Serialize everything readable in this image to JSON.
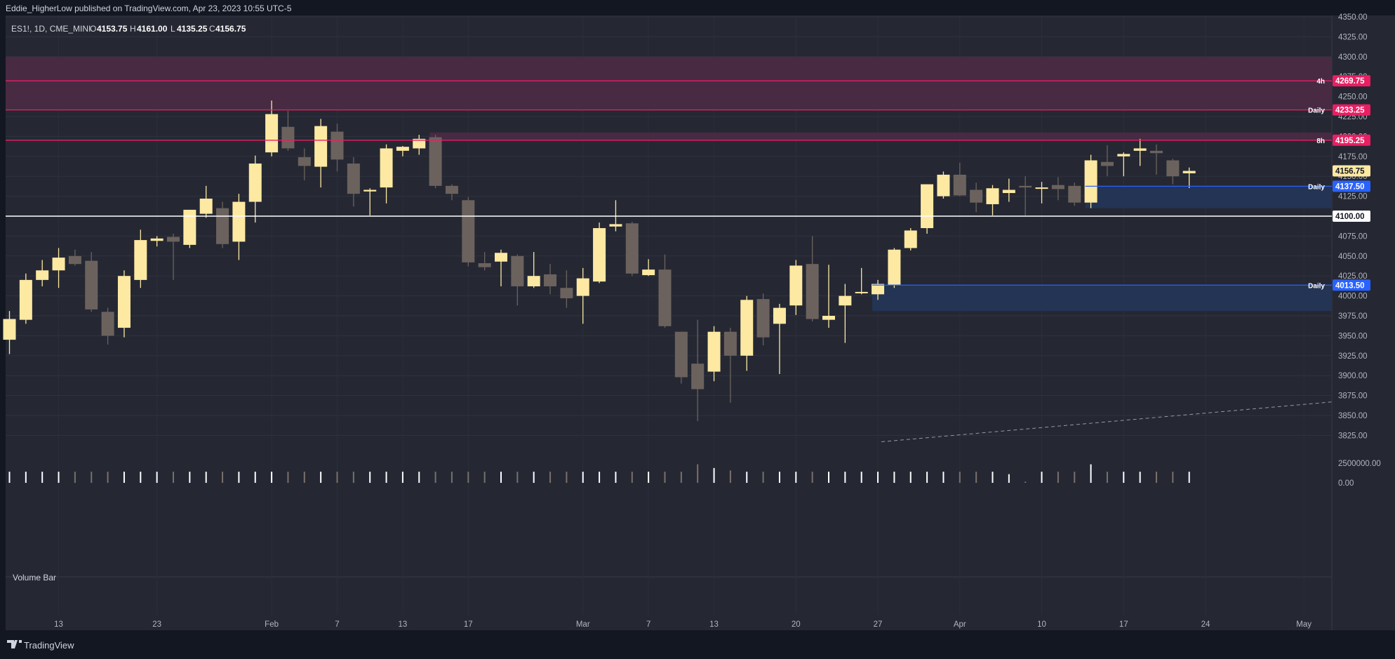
{
  "header": {
    "published_by": "Eddie_HigherLow published on TradingView.com, Apr 23, 2023 10:55 UTC-5",
    "symbol": "ES1!, 1D, CME_MINI",
    "ohlc": [
      {
        "label": "O",
        "value": "4153.75"
      },
      {
        "label": "H",
        "value": "4161.00"
      },
      {
        "label": "L",
        "value": "4135.25"
      },
      {
        "label": "C",
        "value": "4156.75"
      }
    ]
  },
  "volume_label": "Volume Bar",
  "footer_brand": "TradingView",
  "colors": {
    "background": "#131722",
    "pane": "#252833",
    "up_candle": "#fde9a2",
    "down_candle": "#6b625e",
    "resistance_zone": "#4a2a45",
    "resistance_line": "#e91e63",
    "support_zone": "#233556",
    "support_line": "#2962ff",
    "level_line": "#ffffff"
  },
  "chart_data": {
    "type": "candlestick",
    "symbol": "ES1!",
    "interval": "1D",
    "y_axis": {
      "min": 3812.5,
      "max": 4350,
      "step": 25,
      "ticks": [
        "4350.00",
        "4325.00",
        "4300.00",
        "4275.00",
        "4250.00",
        "4225.00",
        "4200.00",
        "4175.00",
        "4150.00",
        "4125.00",
        "4100.00",
        "4075.00",
        "4050.00",
        "4025.00",
        "4000.00",
        "3975.00",
        "3950.00",
        "3925.00",
        "3900.00",
        "3875.00",
        "3850.00",
        "3825.00"
      ]
    },
    "volume_axis": {
      "ticks": [
        "2500000.00",
        "0.00"
      ]
    },
    "x_axis": {
      "ticks": [
        {
          "label": "13",
          "bar": 3
        },
        {
          "label": "23",
          "bar": 9
        },
        {
          "label": "Feb",
          "bar": 16
        },
        {
          "label": "7",
          "bar": 20
        },
        {
          "label": "13",
          "bar": 24
        },
        {
          "label": "17",
          "bar": 28
        },
        {
          "label": "Mar",
          "bar": 35
        },
        {
          "label": "7",
          "bar": 39
        },
        {
          "label": "13",
          "bar": 43
        },
        {
          "label": "20",
          "bar": 48
        },
        {
          "label": "27",
          "bar": 53
        },
        {
          "label": "Apr",
          "bar": 58
        },
        {
          "label": "10",
          "bar": 63
        },
        {
          "label": "17",
          "bar": 68
        },
        {
          "label": "24",
          "bar": 73
        },
        {
          "label": "May",
          "bar": 79
        }
      ]
    },
    "candles": [
      {
        "o": 3945,
        "h": 3981,
        "l": 3927,
        "c": 3971,
        "v": 0.36
      },
      {
        "o": 3970,
        "h": 4028,
        "l": 3965,
        "c": 4020,
        "v": 0.36
      },
      {
        "o": 4020,
        "h": 4045,
        "l": 4012,
        "c": 4032,
        "v": 0.36
      },
      {
        "o": 4032,
        "h": 4060,
        "l": 4010,
        "c": 4048,
        "v": 0.36
      },
      {
        "o": 4050,
        "h": 4058,
        "l": 4038,
        "c": 4040,
        "v": 0.36
      },
      {
        "o": 4044,
        "h": 4055,
        "l": 3980,
        "c": 3983,
        "v": 0.36
      },
      {
        "o": 3980,
        "h": 3985,
        "l": 3939,
        "c": 3950,
        "v": 0.36
      },
      {
        "o": 3960,
        "h": 4032,
        "l": 3948,
        "c": 4025,
        "v": 0.36
      },
      {
        "o": 4020,
        "h": 4083,
        "l": 4010,
        "c": 4070,
        "v": 0.36
      },
      {
        "o": 4069,
        "h": 4075,
        "l": 4062,
        "c": 4072,
        "v": 0.36
      },
      {
        "o": 4074,
        "h": 4078,
        "l": 4020,
        "c": 4068,
        "v": 0.36
      },
      {
        "o": 4064,
        "h": 4108,
        "l": 4060,
        "c": 4108,
        "v": 0.36
      },
      {
        "o": 4103,
        "h": 4138,
        "l": 4098,
        "c": 4122,
        "v": 0.36
      },
      {
        "o": 4110,
        "h": 4118,
        "l": 4060,
        "c": 4065,
        "v": 0.36
      },
      {
        "o": 4068,
        "h": 4128,
        "l": 4045,
        "c": 4118,
        "v": 0.36
      },
      {
        "o": 4118,
        "h": 4176,
        "l": 4092,
        "c": 4166,
        "v": 0.36
      },
      {
        "o": 4180,
        "h": 4245,
        "l": 4175,
        "c": 4228,
        "v": 0.36
      },
      {
        "o": 4212,
        "h": 4232,
        "l": 4182,
        "c": 4185,
        "v": 0.36
      },
      {
        "o": 4174,
        "h": 4185,
        "l": 4145,
        "c": 4163,
        "v": 0.36
      },
      {
        "o": 4162,
        "h": 4222,
        "l": 4136,
        "c": 4213,
        "v": 0.36
      },
      {
        "o": 4206,
        "h": 4216,
        "l": 4156,
        "c": 4171,
        "v": 0.36
      },
      {
        "o": 4166,
        "h": 4174,
        "l": 4112,
        "c": 4128,
        "v": 0.36
      },
      {
        "o": 4131,
        "h": 4135,
        "l": 4101,
        "c": 4133,
        "v": 0.36
      },
      {
        "o": 4136,
        "h": 4190,
        "l": 4116,
        "c": 4185,
        "v": 0.36
      },
      {
        "o": 4182,
        "h": 4188,
        "l": 4175,
        "c": 4187,
        "v": 0.36
      },
      {
        "o": 4185,
        "h": 4202,
        "l": 4177,
        "c": 4197,
        "v": 0.36
      },
      {
        "o": 4199,
        "h": 4202,
        "l": 4135,
        "c": 4138,
        "v": 0.36
      },
      {
        "o": 4138,
        "h": 4140,
        "l": 4120,
        "c": 4128,
        "v": 0.36
      },
      {
        "o": 4120,
        "h": 4124,
        "l": 4037,
        "c": 4042,
        "v": 0.36
      },
      {
        "o": 4041,
        "h": 4055,
        "l": 4032,
        "c": 4036,
        "v": 0.36
      },
      {
        "o": 4043,
        "h": 4058,
        "l": 4012,
        "c": 4054,
        "v": 0.36
      },
      {
        "o": 4050,
        "h": 4052,
        "l": 3988,
        "c": 4012,
        "v": 0.36
      },
      {
        "o": 4012,
        "h": 4055,
        "l": 4010,
        "c": 4025,
        "v": 0.36
      },
      {
        "o": 4027,
        "h": 4040,
        "l": 4002,
        "c": 4012,
        "v": 0.36
      },
      {
        "o": 4010,
        "h": 4032,
        "l": 3985,
        "c": 3997,
        "v": 0.36
      },
      {
        "o": 4000,
        "h": 4035,
        "l": 3965,
        "c": 4022,
        "v": 0.36
      },
      {
        "o": 4018,
        "h": 4092,
        "l": 4016,
        "c": 4085,
        "v": 0.36
      },
      {
        "o": 4087,
        "h": 4120,
        "l": 4081,
        "c": 4090,
        "v": 0.36
      },
      {
        "o": 4091,
        "h": 4093,
        "l": 4025,
        "c": 4028,
        "v": 0.36
      },
      {
        "o": 4026,
        "h": 4046,
        "l": 4025,
        "c": 4033,
        "v": 0.36
      },
      {
        "o": 4033,
        "h": 4052,
        "l": 3960,
        "c": 3962,
        "v": 0.36
      },
      {
        "o": 3955,
        "h": 3955,
        "l": 3890,
        "c": 3898,
        "v": 0.36
      },
      {
        "o": 3915,
        "h": 3970,
        "l": 3843,
        "c": 3883,
        "v": 0.6
      },
      {
        "o": 3905,
        "h": 3962,
        "l": 3893,
        "c": 3955,
        "v": 0.48
      },
      {
        "o": 3955,
        "h": 3960,
        "l": 3866,
        "c": 3925,
        "v": 0.4
      },
      {
        "o": 3925,
        "h": 4000,
        "l": 3906,
        "c": 3995,
        "v": 0.36
      },
      {
        "o": 3996,
        "h": 4003,
        "l": 3938,
        "c": 3948,
        "v": 0.36
      },
      {
        "o": 3965,
        "h": 3990,
        "l": 3902,
        "c": 3985,
        "v": 0.36
      },
      {
        "o": 3988,
        "h": 4045,
        "l": 3976,
        "c": 4038,
        "v": 0.36
      },
      {
        "o": 4040,
        "h": 4075,
        "l": 3968,
        "c": 3971,
        "v": 0.36
      },
      {
        "o": 3970,
        "h": 4039,
        "l": 3960,
        "c": 3975,
        "v": 0.36
      },
      {
        "o": 3988,
        "h": 4015,
        "l": 3941,
        "c": 4000,
        "v": 0.36
      },
      {
        "o": 4004,
        "h": 4035,
        "l": 4002,
        "c": 4005,
        "v": 0.36
      },
      {
        "o": 4002,
        "h": 4020,
        "l": 3995,
        "c": 4015,
        "v": 0.36
      },
      {
        "o": 4014,
        "h": 4060,
        "l": 4010,
        "c": 4058,
        "v": 0.36
      },
      {
        "o": 4060,
        "h": 4085,
        "l": 4057,
        "c": 4082,
        "v": 0.36
      },
      {
        "o": 4085,
        "h": 4140,
        "l": 4078,
        "c": 4140,
        "v": 0.36
      },
      {
        "o": 4125,
        "h": 4156,
        "l": 4122,
        "c": 4152,
        "v": 0.36
      },
      {
        "o": 4152,
        "h": 4167,
        "l": 4125,
        "c": 4126,
        "v": 0.36
      },
      {
        "o": 4133,
        "h": 4142,
        "l": 4105,
        "c": 4117,
        "v": 0.36
      },
      {
        "o": 4115,
        "h": 4139,
        "l": 4101,
        "c": 4135,
        "v": 0.36
      },
      {
        "o": 4129,
        "h": 4147,
        "l": 4118,
        "c": 4133,
        "v": 0.28
      },
      {
        "o": 4138,
        "h": 4150,
        "l": 4101,
        "c": 4136,
        "v": 0.04
      },
      {
        "o": 4136,
        "h": 4143,
        "l": 4116,
        "c": 4136,
        "v": 0.36
      },
      {
        "o": 4139,
        "h": 4149,
        "l": 4120,
        "c": 4134,
        "v": 0.36
      },
      {
        "o": 4138,
        "h": 4142,
        "l": 4113,
        "c": 4117,
        "v": 0.36
      },
      {
        "o": 4117,
        "h": 4177,
        "l": 4110,
        "c": 4170,
        "v": 0.6
      },
      {
        "o": 4168,
        "h": 4189,
        "l": 4150,
        "c": 4163,
        "v": 0.36
      },
      {
        "o": 4175,
        "h": 4180,
        "l": 4150,
        "c": 4178,
        "v": 0.36
      },
      {
        "o": 4182,
        "h": 4197,
        "l": 4163,
        "c": 4185,
        "v": 0.36
      },
      {
        "o": 4182,
        "h": 4190,
        "l": 4152,
        "c": 4179,
        "v": 0.36
      },
      {
        "o": 4170,
        "h": 4172,
        "l": 4140,
        "c": 4150,
        "v": 0.36
      },
      {
        "o": 4153.75,
        "h": 4161,
        "l": 4135.25,
        "c": 4156.75,
        "v": 0.36
      }
    ],
    "horizontal_levels": [
      {
        "value": 4100.0,
        "kind": "white",
        "price_label": "4100.00"
      }
    ],
    "zones": [
      {
        "type": "resistance",
        "top": 4300,
        "bottom": 4233.25,
        "start_bar": 0
      },
      {
        "type": "resistance",
        "top": 4205,
        "bottom": 4195.25,
        "start_bar": 26
      },
      {
        "type": "support",
        "top": 4137.5,
        "bottom": 4110,
        "start_bar": 66
      },
      {
        "type": "support",
        "top": 4013.5,
        "bottom": 3981,
        "start_bar": 53
      }
    ],
    "level_tags": [
      {
        "value": 4269.75,
        "tf": "4h",
        "price_label": "4269.75",
        "kind": "resistance"
      },
      {
        "value": 4233.25,
        "tf": "Daily",
        "price_label": "4233.25",
        "kind": "resistance"
      },
      {
        "value": 4195.25,
        "tf": "8h",
        "price_label": "4195.25",
        "kind": "resistance"
      },
      {
        "value": 4137.5,
        "tf": "Daily",
        "price_label": "4137.50",
        "kind": "support"
      },
      {
        "value": 4013.5,
        "tf": "Daily",
        "price_label": "4013.50",
        "kind": "support"
      }
    ],
    "last_price": {
      "value": 4156.75,
      "label": "4156.75"
    },
    "trendline": {
      "start_bar": 53,
      "start_value": 3817,
      "end_bar": 79,
      "end_value": 3867,
      "style": "dashed"
    },
    "grid": true
  }
}
